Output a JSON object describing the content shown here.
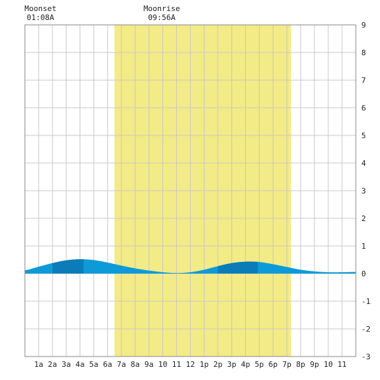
{
  "colors": {
    "background": "#ffffff",
    "daylight": "#f3eb85",
    "grid": "#c8c8c8",
    "border": "#888888",
    "tide_light": "#0c9bd8",
    "tide_dark": "#0a7cb8",
    "text": "#222222"
  },
  "annotations": [
    {
      "name": "moonset",
      "label": "Moonset",
      "time": "01:08A",
      "hour": 1.13
    },
    {
      "name": "moonrise",
      "label": "Moonrise",
      "time": "09:56A",
      "hour": 9.93
    }
  ],
  "chart_data": {
    "type": "area",
    "title": "",
    "xlabel": "",
    "ylabel": "",
    "xlim": [
      0,
      24
    ],
    "ylim": [
      -3,
      9
    ],
    "y_ticks": [
      "-3",
      "-2",
      "-1",
      "0",
      "1",
      "2",
      "3",
      "4",
      "5",
      "6",
      "7",
      "8",
      "9"
    ],
    "x_ticks": [
      {
        "hour": 1,
        "label": "1a"
      },
      {
        "hour": 2,
        "label": "2a"
      },
      {
        "hour": 3,
        "label": "3a"
      },
      {
        "hour": 4,
        "label": "4a"
      },
      {
        "hour": 5,
        "label": "5a"
      },
      {
        "hour": 6,
        "label": "6a"
      },
      {
        "hour": 7,
        "label": "7a"
      },
      {
        "hour": 8,
        "label": "8a"
      },
      {
        "hour": 9,
        "label": "9a"
      },
      {
        "hour": 10,
        "label": "10"
      },
      {
        "hour": 11,
        "label": "11"
      },
      {
        "hour": 12,
        "label": "12"
      },
      {
        "hour": 13,
        "label": "1p"
      },
      {
        "hour": 14,
        "label": "2p"
      },
      {
        "hour": 15,
        "label": "3p"
      },
      {
        "hour": 16,
        "label": "4p"
      },
      {
        "hour": 17,
        "label": "5p"
      },
      {
        "hour": 18,
        "label": "6p"
      },
      {
        "hour": 19,
        "label": "7p"
      },
      {
        "hour": 20,
        "label": "8p"
      },
      {
        "hour": 21,
        "label": "9p"
      },
      {
        "hour": 22,
        "label": "10"
      },
      {
        "hour": 23,
        "label": "11"
      }
    ],
    "grid": true,
    "daylight": {
      "start_hour": 6.5,
      "end_hour": 19.3
    },
    "highlight_bands": [
      {
        "start_hour": 2,
        "end_hour": 4.25
      },
      {
        "start_hour": 14,
        "end_hour": 16.9
      }
    ],
    "series": [
      {
        "values": [
          {
            "hour": 0,
            "height": 0.12
          },
          {
            "hour": 1,
            "height": 0.25
          },
          {
            "hour": 2,
            "height": 0.38
          },
          {
            "hour": 3,
            "height": 0.48
          },
          {
            "hour": 4,
            "height": 0.52
          },
          {
            "hour": 5,
            "height": 0.49
          },
          {
            "hour": 6,
            "height": 0.4
          },
          {
            "hour": 7,
            "height": 0.29
          },
          {
            "hour": 8,
            "height": 0.19
          },
          {
            "hour": 9,
            "height": 0.11
          },
          {
            "hour": 10,
            "height": 0.05
          },
          {
            "hour": 11,
            "height": 0.02
          },
          {
            "hour": 12,
            "height": 0.05
          },
          {
            "hour": 13,
            "height": 0.14
          },
          {
            "hour": 14,
            "height": 0.27
          },
          {
            "hour": 15,
            "height": 0.38
          },
          {
            "hour": 16,
            "height": 0.43
          },
          {
            "hour": 17,
            "height": 0.42
          },
          {
            "hour": 18,
            "height": 0.34
          },
          {
            "hour": 19,
            "height": 0.24
          },
          {
            "hour": 20,
            "height": 0.14
          },
          {
            "hour": 21,
            "height": 0.08
          },
          {
            "hour": 22,
            "height": 0.05
          },
          {
            "hour": 23,
            "height": 0.05
          },
          {
            "hour": 24,
            "height": 0.06
          }
        ]
      }
    ]
  }
}
